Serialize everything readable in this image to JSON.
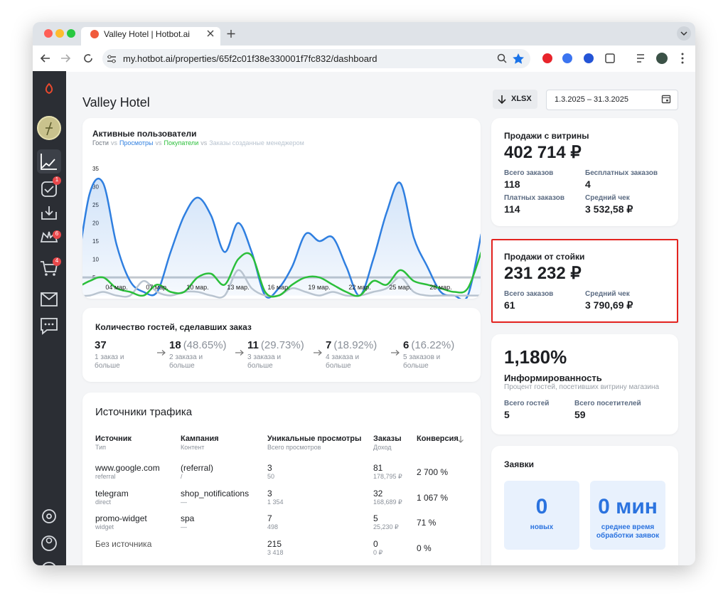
{
  "browser": {
    "tab_title": "Valley Hotel | Hotbot.ai",
    "url": "my.hotbot.ai/properties/65f2c01f38e330001f7fc832/dashboard"
  },
  "sidebar": {
    "badges": [
      "1",
      "6",
      "4"
    ]
  },
  "header": {
    "title": "Valley Hotel",
    "export_button": "XLSX",
    "date_range": "1.3.2025 – 31.3.2025"
  },
  "chart_data": {
    "type": "line",
    "title": "Активные пользователи",
    "legend_separator": "vs",
    "categories": [
      null,
      null,
      null,
      "04 мар.",
      null,
      null,
      "07 мар.",
      null,
      null,
      "10 мар.",
      null,
      null,
      "13 мар.",
      null,
      null,
      "16 мар.",
      null,
      null,
      "19 мар.",
      null,
      null,
      "22 мар.",
      null,
      null,
      "25 мар.",
      null,
      null,
      "28 мар.",
      null,
      null,
      null
    ],
    "series": [
      {
        "name": "Гости",
        "color": "#9aa3ad",
        "values": [
          5,
          5,
          5,
          5,
          5,
          5,
          5,
          5,
          5,
          5,
          5,
          5,
          5,
          5,
          5,
          5,
          5,
          5,
          5,
          5,
          5,
          5,
          5,
          5,
          5,
          5,
          5,
          5,
          5,
          5,
          5
        ]
      },
      {
        "name": "Просмотры",
        "color": "#2f7fe0",
        "values": [
          5,
          28,
          31,
          14,
          4,
          1,
          1,
          12,
          22,
          27,
          22,
          12,
          20,
          12,
          0,
          2,
          8,
          17,
          15,
          16,
          8,
          0,
          10,
          23,
          31,
          16,
          8,
          1,
          0,
          0,
          17
        ]
      },
      {
        "name": "Покупатели",
        "color": "#2bbf3a",
        "values": [
          2,
          4,
          5,
          2,
          1,
          0,
          3,
          1,
          1,
          5,
          6,
          3,
          10,
          11,
          1,
          0,
          3,
          5,
          5,
          3,
          1,
          0,
          4,
          3,
          7,
          4,
          3,
          2,
          1,
          2,
          12
        ]
      },
      {
        "name": "Заказы созданные менеджером",
        "color": "#b9c4d0",
        "values": [
          0,
          0,
          1,
          0,
          0,
          4,
          1,
          0,
          1,
          1,
          0,
          0,
          7,
          2,
          0,
          0,
          2,
          1,
          0,
          1,
          0,
          0,
          1,
          2,
          5,
          1,
          0,
          0,
          0,
          0,
          0
        ]
      }
    ],
    "ylim": [
      0,
      35
    ],
    "yticks": [
      5,
      10,
      15,
      20,
      25,
      30,
      35
    ],
    "grid": false
  },
  "funnel": {
    "title": "Количество гостей, сделавших заказ",
    "steps": [
      {
        "count": "37",
        "label": "1 заказ и больше"
      },
      {
        "count": "18",
        "percent": "(48.65%)",
        "label": "2 заказа и больше"
      },
      {
        "count": "11",
        "percent": "(29.73%)",
        "label": "3 заказа и больше"
      },
      {
        "count": "7",
        "percent": "(18.92%)",
        "label": "4 заказа и больше"
      },
      {
        "count": "6",
        "percent": "(16.22%)",
        "label": "5 заказов и больше"
      }
    ]
  },
  "traffic": {
    "title": "Источники трафика",
    "columns": [
      {
        "title": "Источник",
        "subtitle": "Тип"
      },
      {
        "title": "Кампания",
        "subtitle": "Контент"
      },
      {
        "title": "Уникальные просмотры",
        "subtitle": "Всего просмотров"
      },
      {
        "title": "Заказы",
        "subtitle": "Доход"
      },
      {
        "title": "Конверсия"
      }
    ],
    "rows": [
      {
        "source": "www.google.com",
        "type": "referral",
        "campaign": "(referral)",
        "content": "/",
        "unique_views": "3",
        "total_views": "50",
        "orders": "81",
        "revenue": "178,795 ₽",
        "conversion": "2 700 %"
      },
      {
        "source": "telegram",
        "type": "direct",
        "campaign": "shop_notifications",
        "content": "—",
        "unique_views": "3",
        "total_views": "1 354",
        "orders": "32",
        "revenue": "168,689 ₽",
        "conversion": "1 067 %"
      },
      {
        "source": "promo-widget",
        "type": "widget",
        "campaign": "spa",
        "content": "—",
        "unique_views": "7",
        "total_views": "498",
        "orders": "5",
        "revenue": "25,230 ₽",
        "conversion": "71 %"
      },
      {
        "source": "Без источника",
        "unique_views": "215",
        "total_views": "3 418",
        "orders": "0",
        "revenue": "0 ₽",
        "conversion": "0 %"
      }
    ]
  },
  "showcase_sales": {
    "title": "Продажи с витрины",
    "total": "402 714 ₽",
    "stats": [
      {
        "label": "Всего заказов",
        "value": "118"
      },
      {
        "label": "Бесплатных заказов",
        "value": "4"
      },
      {
        "label": "Платных заказов",
        "value": "114"
      },
      {
        "label": "Средний чек",
        "value": "3 532,58 ₽"
      }
    ]
  },
  "counter_sales": {
    "title": "Продажи от стойки",
    "total": "231 232 ₽",
    "stats": [
      {
        "label": "Всего заказов",
        "value": "61"
      },
      {
        "label": "Средний чек",
        "value": "3 790,69 ₽"
      }
    ]
  },
  "awareness": {
    "value": "1,180%",
    "title": "Информированность",
    "description": "Процент гостей, посетивших витрину магазина",
    "stats": [
      {
        "label": "Всего гостей",
        "value": "5"
      },
      {
        "label": "Всего посетителей",
        "value": "59"
      }
    ]
  },
  "requests": {
    "title": "Заявки",
    "tiles": [
      {
        "value": "0",
        "label": "новых"
      },
      {
        "value": "0 мин",
        "label": "среднее время обработки заявок"
      }
    ]
  }
}
